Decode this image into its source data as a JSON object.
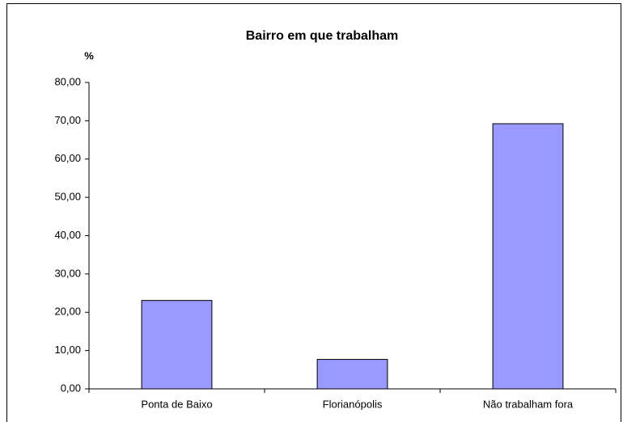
{
  "chart_data": {
    "type": "bar",
    "title": "Bairro em que trabalham",
    "y_label": "%",
    "categories": [
      "Ponta de Baixo",
      "Florianópolis",
      "Não trabalham fora"
    ],
    "values": [
      23.08,
      7.69,
      69.23
    ],
    "color": "#9999ff",
    "ylim": [
      0,
      80
    ],
    "yticks": [
      {
        "value": 0,
        "label": "0,00"
      },
      {
        "value": 10,
        "label": "10,00"
      },
      {
        "value": 20,
        "label": "20,00"
      },
      {
        "value": 30,
        "label": "30,00"
      },
      {
        "value": 40,
        "label": "40,00"
      },
      {
        "value": 50,
        "label": "50,00"
      },
      {
        "value": 60,
        "label": "60,00"
      },
      {
        "value": 70,
        "label": "70,00"
      },
      {
        "value": 80,
        "label": "80,00"
      }
    ],
    "grid": false
  }
}
